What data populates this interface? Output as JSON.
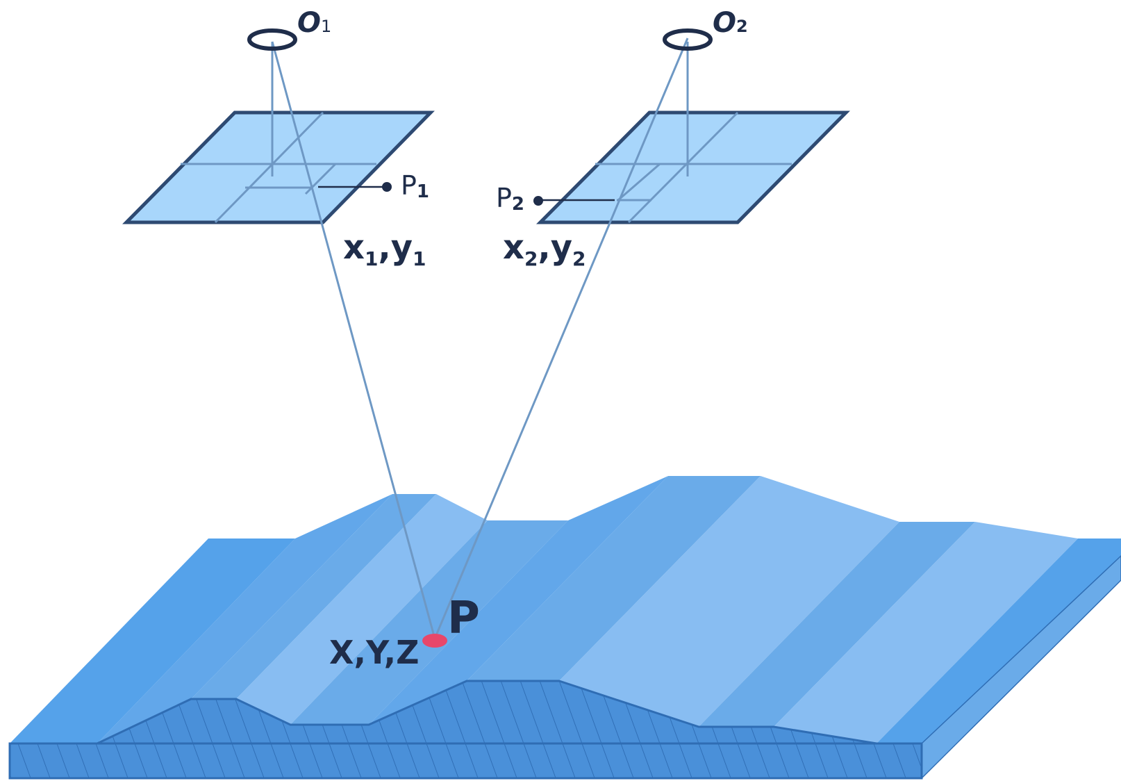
{
  "labels": {
    "camera1": {
      "main": "O",
      "sub": "1"
    },
    "camera2": {
      "main": "O",
      "sub": "2"
    },
    "image_point1": {
      "main": "P",
      "sub": "1"
    },
    "image_point2": {
      "main": "P",
      "sub": "2"
    },
    "coords1": {
      "x": "x",
      "xsub": "1",
      "sep": ",",
      "y": "y",
      "ysub": "1"
    },
    "coords2": {
      "x": "x",
      "xsub": "2",
      "sep": ",",
      "y": "y",
      "ysub": "2"
    },
    "ground_point": "P",
    "ground_coords": "X,Y,Z"
  },
  "colors": {
    "ink": "#1f2d4a",
    "frame_outline": "#2e4a72",
    "frame_fill": "#a8d6fb",
    "ray": "#6e98c4",
    "terrain_light": "#88bdf2",
    "terrain_mid": "#6aabe9",
    "terrain_dark": "#55a2ea",
    "terrain_front": "#4a90d9",
    "terrain_hatch": "#2f6db4",
    "point_marker": "#e8476a"
  }
}
